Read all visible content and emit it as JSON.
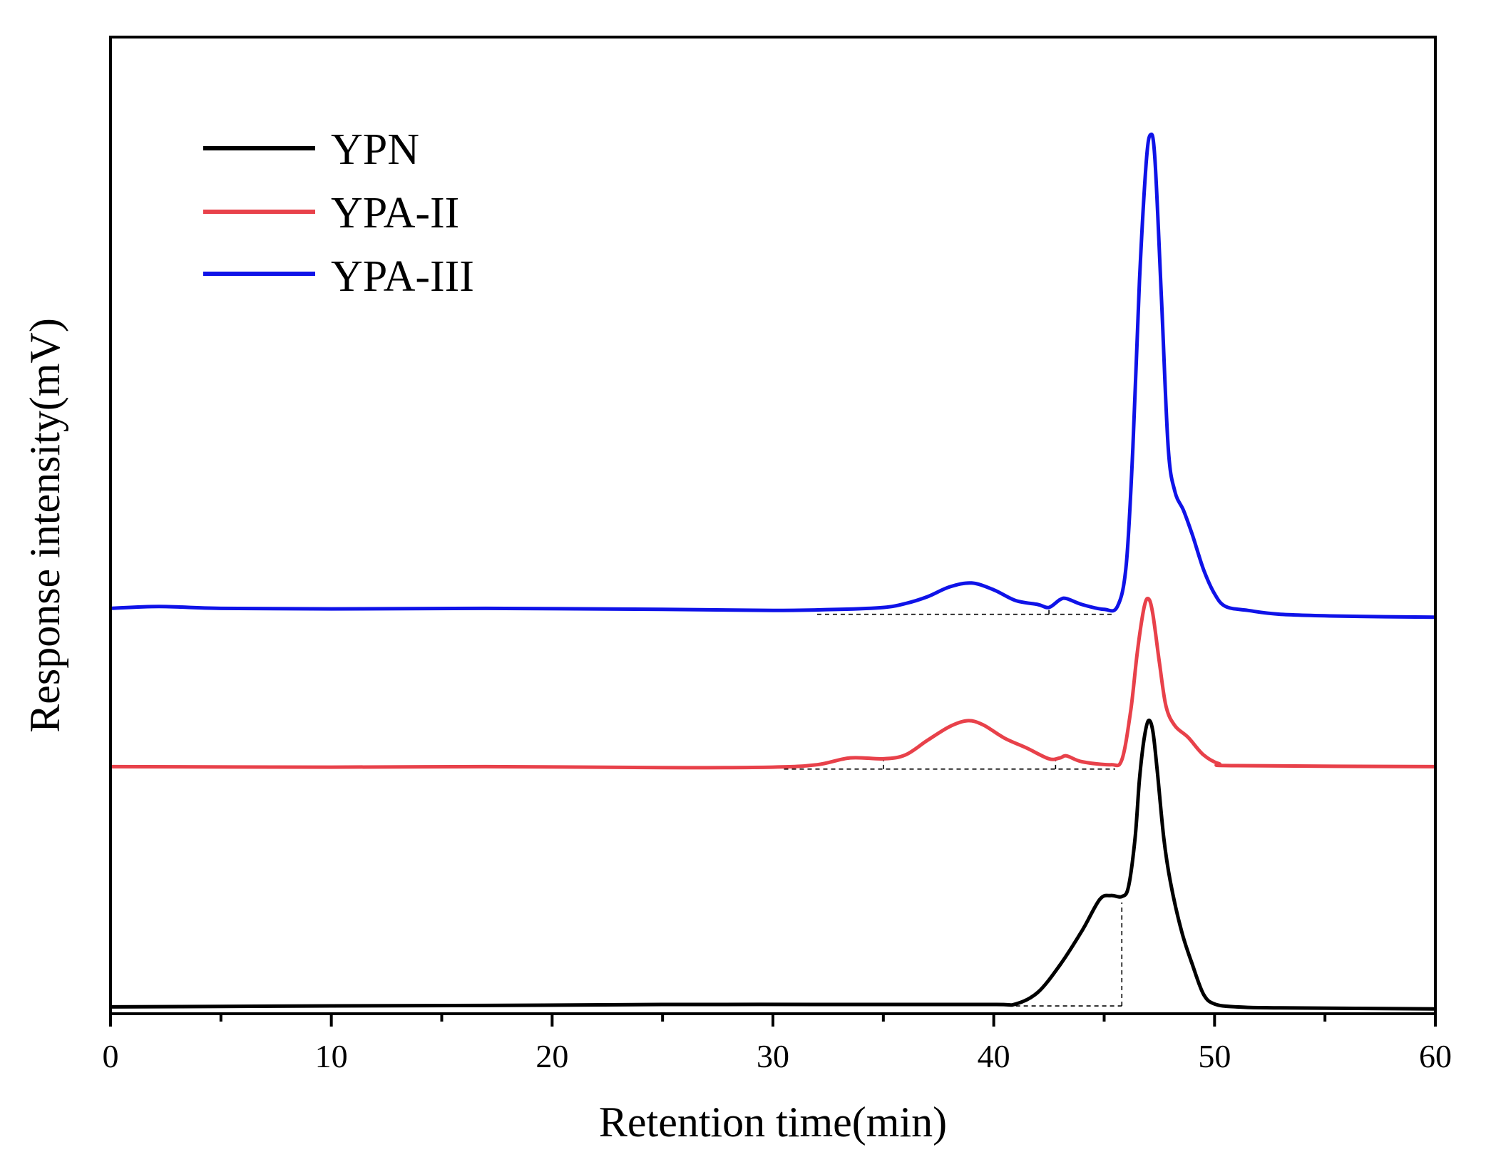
{
  "chart_data": {
    "type": "line",
    "title": "",
    "xlabel": "Retention time(min)",
    "ylabel": "Response intensity(mV)",
    "xlim": [
      0,
      60
    ],
    "x_ticks": [
      0,
      10,
      20,
      30,
      40,
      50,
      60
    ],
    "x_tick_labels": [
      "0",
      "10",
      "20",
      "30",
      "40",
      "50",
      "60"
    ],
    "y_ticks_shown": false,
    "legend_position": "top-left",
    "series": [
      {
        "name": "YPN",
        "color": "#000000",
        "points": [
          [
            0,
            99.3
          ],
          [
            5,
            99.25
          ],
          [
            10,
            99.2
          ],
          [
            17,
            99.15
          ],
          [
            25,
            99.05
          ],
          [
            35,
            99.05
          ],
          [
            40,
            99.05
          ],
          [
            41,
            99.0
          ],
          [
            42,
            97.8
          ],
          [
            43,
            95.0
          ],
          [
            44,
            91.5
          ],
          [
            44.8,
            88.3
          ],
          [
            45.3,
            87.9
          ],
          [
            45.8,
            88.0
          ],
          [
            46.1,
            87.0
          ],
          [
            46.4,
            82.0
          ],
          [
            46.6,
            76.0
          ],
          [
            46.8,
            72.0
          ],
          [
            47.0,
            70.0
          ],
          [
            47.2,
            71.0
          ],
          [
            47.4,
            75.0
          ],
          [
            47.7,
            82.0
          ],
          [
            48.0,
            86.5
          ],
          [
            48.5,
            91.5
          ],
          [
            49.0,
            95.0
          ],
          [
            49.5,
            98.0
          ],
          [
            50.0,
            99.0
          ],
          [
            51.0,
            99.3
          ],
          [
            53.0,
            99.4
          ],
          [
            60,
            99.5
          ]
        ]
      },
      {
        "name": "YPA-II",
        "color": "#e8414a",
        "points": [
          [
            0,
            74.7
          ],
          [
            10,
            74.75
          ],
          [
            17,
            74.7
          ],
          [
            25,
            74.8
          ],
          [
            30,
            74.75
          ],
          [
            32,
            74.5
          ],
          [
            33.5,
            73.8
          ],
          [
            35,
            73.9
          ],
          [
            36,
            73.5
          ],
          [
            37,
            72.0
          ],
          [
            38,
            70.6
          ],
          [
            38.8,
            70.0
          ],
          [
            39.5,
            70.4
          ],
          [
            40.5,
            71.8
          ],
          [
            41.5,
            72.8
          ],
          [
            42.5,
            73.9
          ],
          [
            43.0,
            73.8
          ],
          [
            43.3,
            73.6
          ],
          [
            44.0,
            74.2
          ],
          [
            45.3,
            74.5
          ],
          [
            45.8,
            74.0
          ],
          [
            46.2,
            69.0
          ],
          [
            46.5,
            63.0
          ],
          [
            46.8,
            58.5
          ],
          [
            47.0,
            57.5
          ],
          [
            47.2,
            59.0
          ],
          [
            47.5,
            64.0
          ],
          [
            47.8,
            68.5
          ],
          [
            48.2,
            70.5
          ],
          [
            48.8,
            71.7
          ],
          [
            49.5,
            73.5
          ],
          [
            50.2,
            74.4
          ],
          [
            51.0,
            74.6
          ],
          [
            60,
            74.7
          ]
        ]
      },
      {
        "name": "YPA-III",
        "color": "#0f13e8",
        "points": [
          [
            0,
            58.5
          ],
          [
            2.2,
            58.3
          ],
          [
            5,
            58.5
          ],
          [
            10,
            58.55
          ],
          [
            17,
            58.5
          ],
          [
            25,
            58.6
          ],
          [
            30,
            58.7
          ],
          [
            33,
            58.6
          ],
          [
            35,
            58.4
          ],
          [
            36,
            58.0
          ],
          [
            37,
            57.3
          ],
          [
            38,
            56.3
          ],
          [
            39,
            55.9
          ],
          [
            40,
            56.6
          ],
          [
            41,
            57.7
          ],
          [
            42,
            58.1
          ],
          [
            42.5,
            58.4
          ],
          [
            43.0,
            57.6
          ],
          [
            43.3,
            57.5
          ],
          [
            44.0,
            58.1
          ],
          [
            45.0,
            58.6
          ],
          [
            45.6,
            58.3
          ],
          [
            46.0,
            54.0
          ],
          [
            46.3,
            42.0
          ],
          [
            46.6,
            25.0
          ],
          [
            46.9,
            13.0
          ],
          [
            47.1,
            10.0
          ],
          [
            47.3,
            12.5
          ],
          [
            47.6,
            27.0
          ],
          [
            47.9,
            42.0
          ],
          [
            48.2,
            46.5
          ],
          [
            48.6,
            48.5
          ],
          [
            49.0,
            51.0
          ],
          [
            49.5,
            54.5
          ],
          [
            50.0,
            57.0
          ],
          [
            50.5,
            58.3
          ],
          [
            51.5,
            58.7
          ],
          [
            53.0,
            59.1
          ],
          [
            56,
            59.3
          ],
          [
            60,
            59.4
          ]
        ]
      }
    ],
    "annotations": [
      {
        "type": "dashed-baseline",
        "series": "YPN",
        "from": [
          41.0,
          99.2
        ],
        "to": [
          45.8,
          99.2
        ]
      },
      {
        "type": "dashed-divider",
        "series": "YPN",
        "from": [
          45.8,
          99.2
        ],
        "to": [
          45.8,
          88.6
        ]
      },
      {
        "type": "dashed-baseline",
        "series": "YPA-II",
        "from": [
          30.5,
          74.95
        ],
        "to": [
          45.5,
          74.95
        ]
      },
      {
        "type": "dashed-divider",
        "series": "YPA-II",
        "from": [
          35.0,
          74.95
        ],
        "to": [
          35.0,
          73.8
        ]
      },
      {
        "type": "dashed-divider",
        "series": "YPA-II",
        "from": [
          42.8,
          74.95
        ],
        "to": [
          42.8,
          73.9
        ]
      },
      {
        "type": "dashed-baseline",
        "series": "YPA-III",
        "from": [
          32.0,
          59.1
        ],
        "to": [
          45.5,
          59.1
        ]
      },
      {
        "type": "dashed-divider",
        "series": "YPA-III",
        "from": [
          42.5,
          59.1
        ],
        "to": [
          42.5,
          58.4
        ]
      }
    ]
  }
}
